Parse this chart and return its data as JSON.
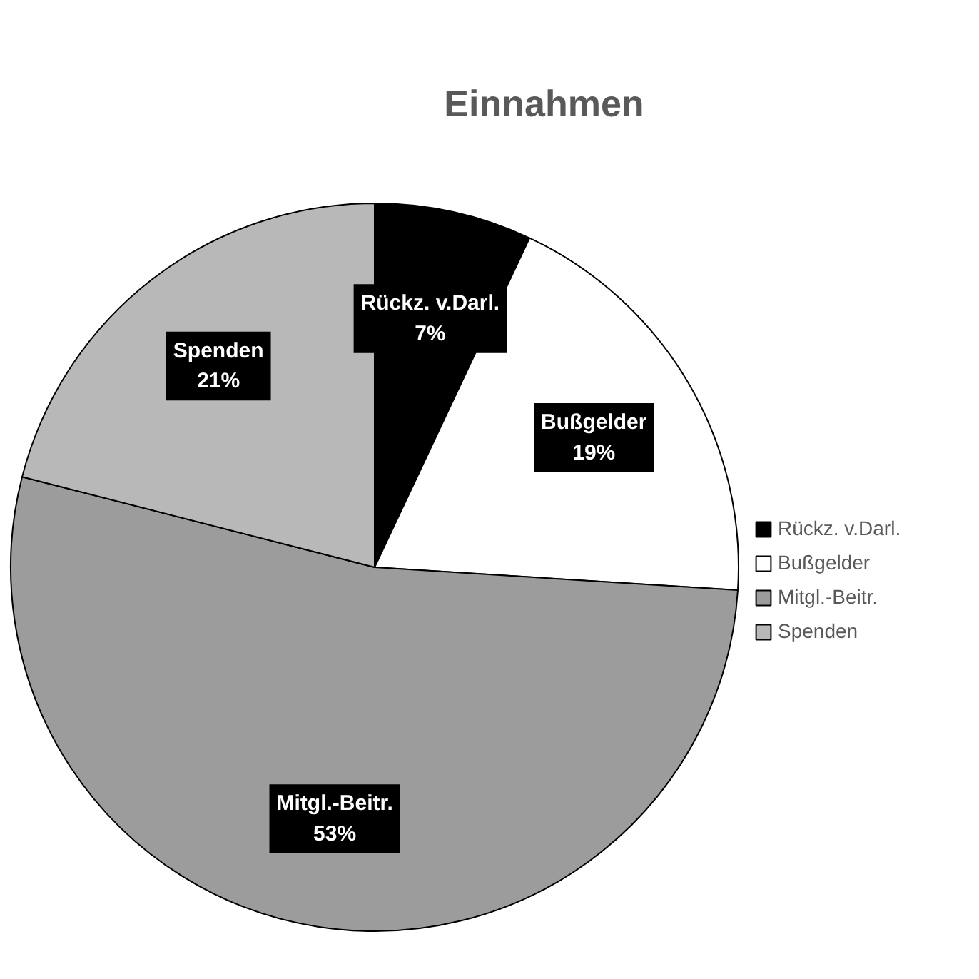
{
  "chart_data": {
    "type": "pie",
    "title": "Einnahmen",
    "categories": [
      "Rückz. v.Darl.",
      "Bußgelder",
      "Mitgl.-Beitr.",
      "Spenden"
    ],
    "values": [
      7,
      19,
      53,
      21
    ],
    "colors": [
      "#000000",
      "#ffffff",
      "#9c9c9c",
      "#b8b8b8"
    ],
    "value_labels": [
      "7%",
      "19%",
      "53%",
      "21%"
    ],
    "legend": "right"
  }
}
